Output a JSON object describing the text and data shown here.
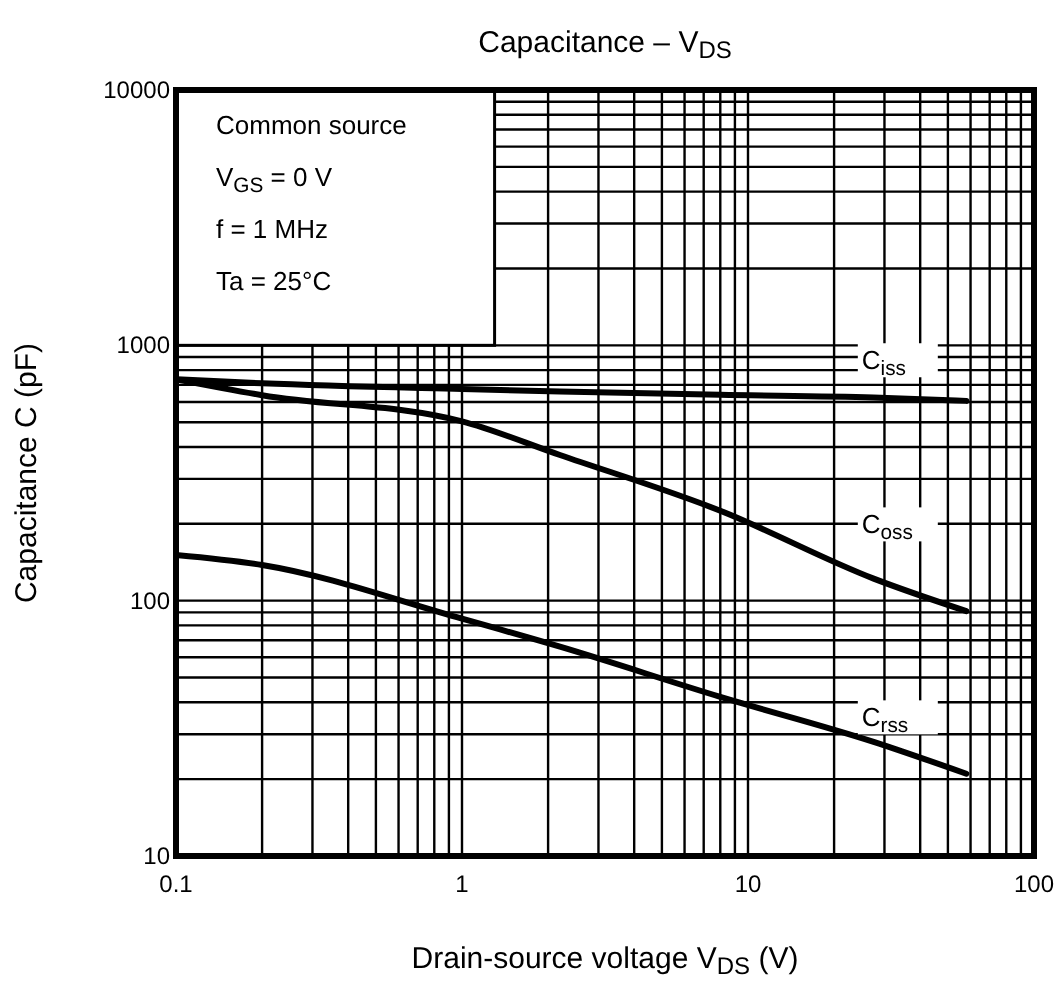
{
  "chart_data": {
    "type": "line",
    "title": "Capacitance – V$_{DS}$",
    "xlabel": "Drain-source voltage   V$_{DS}$   (V)",
    "ylabel": "Capacitance   C   (pF)",
    "log": "xy",
    "grid": true,
    "legend": false,
    "xlim": [
      0.1,
      100
    ],
    "ylim": [
      10,
      10000
    ],
    "xticks": [
      0.1,
      1,
      10,
      100
    ],
    "yticks": [
      10,
      100,
      1000,
      10000
    ],
    "annotations": [
      "Common source",
      "V$_{GS}$ = 0 V",
      "f = 1 MHz",
      "Ta = 25°C"
    ],
    "series": [
      {
        "name": "C$_{iss}$",
        "color": "#000000",
        "x": [
          0.1,
          0.2,
          1,
          2.2,
          8,
          27.5,
          58
        ],
        "values": [
          736,
          710,
          674,
          660,
          640,
          625,
          606
        ]
      },
      {
        "name": "C$_{oss}$",
        "color": "#000000",
        "x": [
          0.1,
          0.2,
          1,
          2.2,
          8,
          27.5,
          58
        ],
        "values": [
          736,
          638,
          504,
          372,
          225,
          122,
          91
        ]
      },
      {
        "name": "C$_{rss}$",
        "color": "#000000",
        "x": [
          0.1,
          0.2,
          1,
          2.2,
          8,
          27.5,
          58
        ],
        "values": [
          151,
          138,
          85,
          66,
          42,
          28,
          21
        ]
      }
    ]
  }
}
